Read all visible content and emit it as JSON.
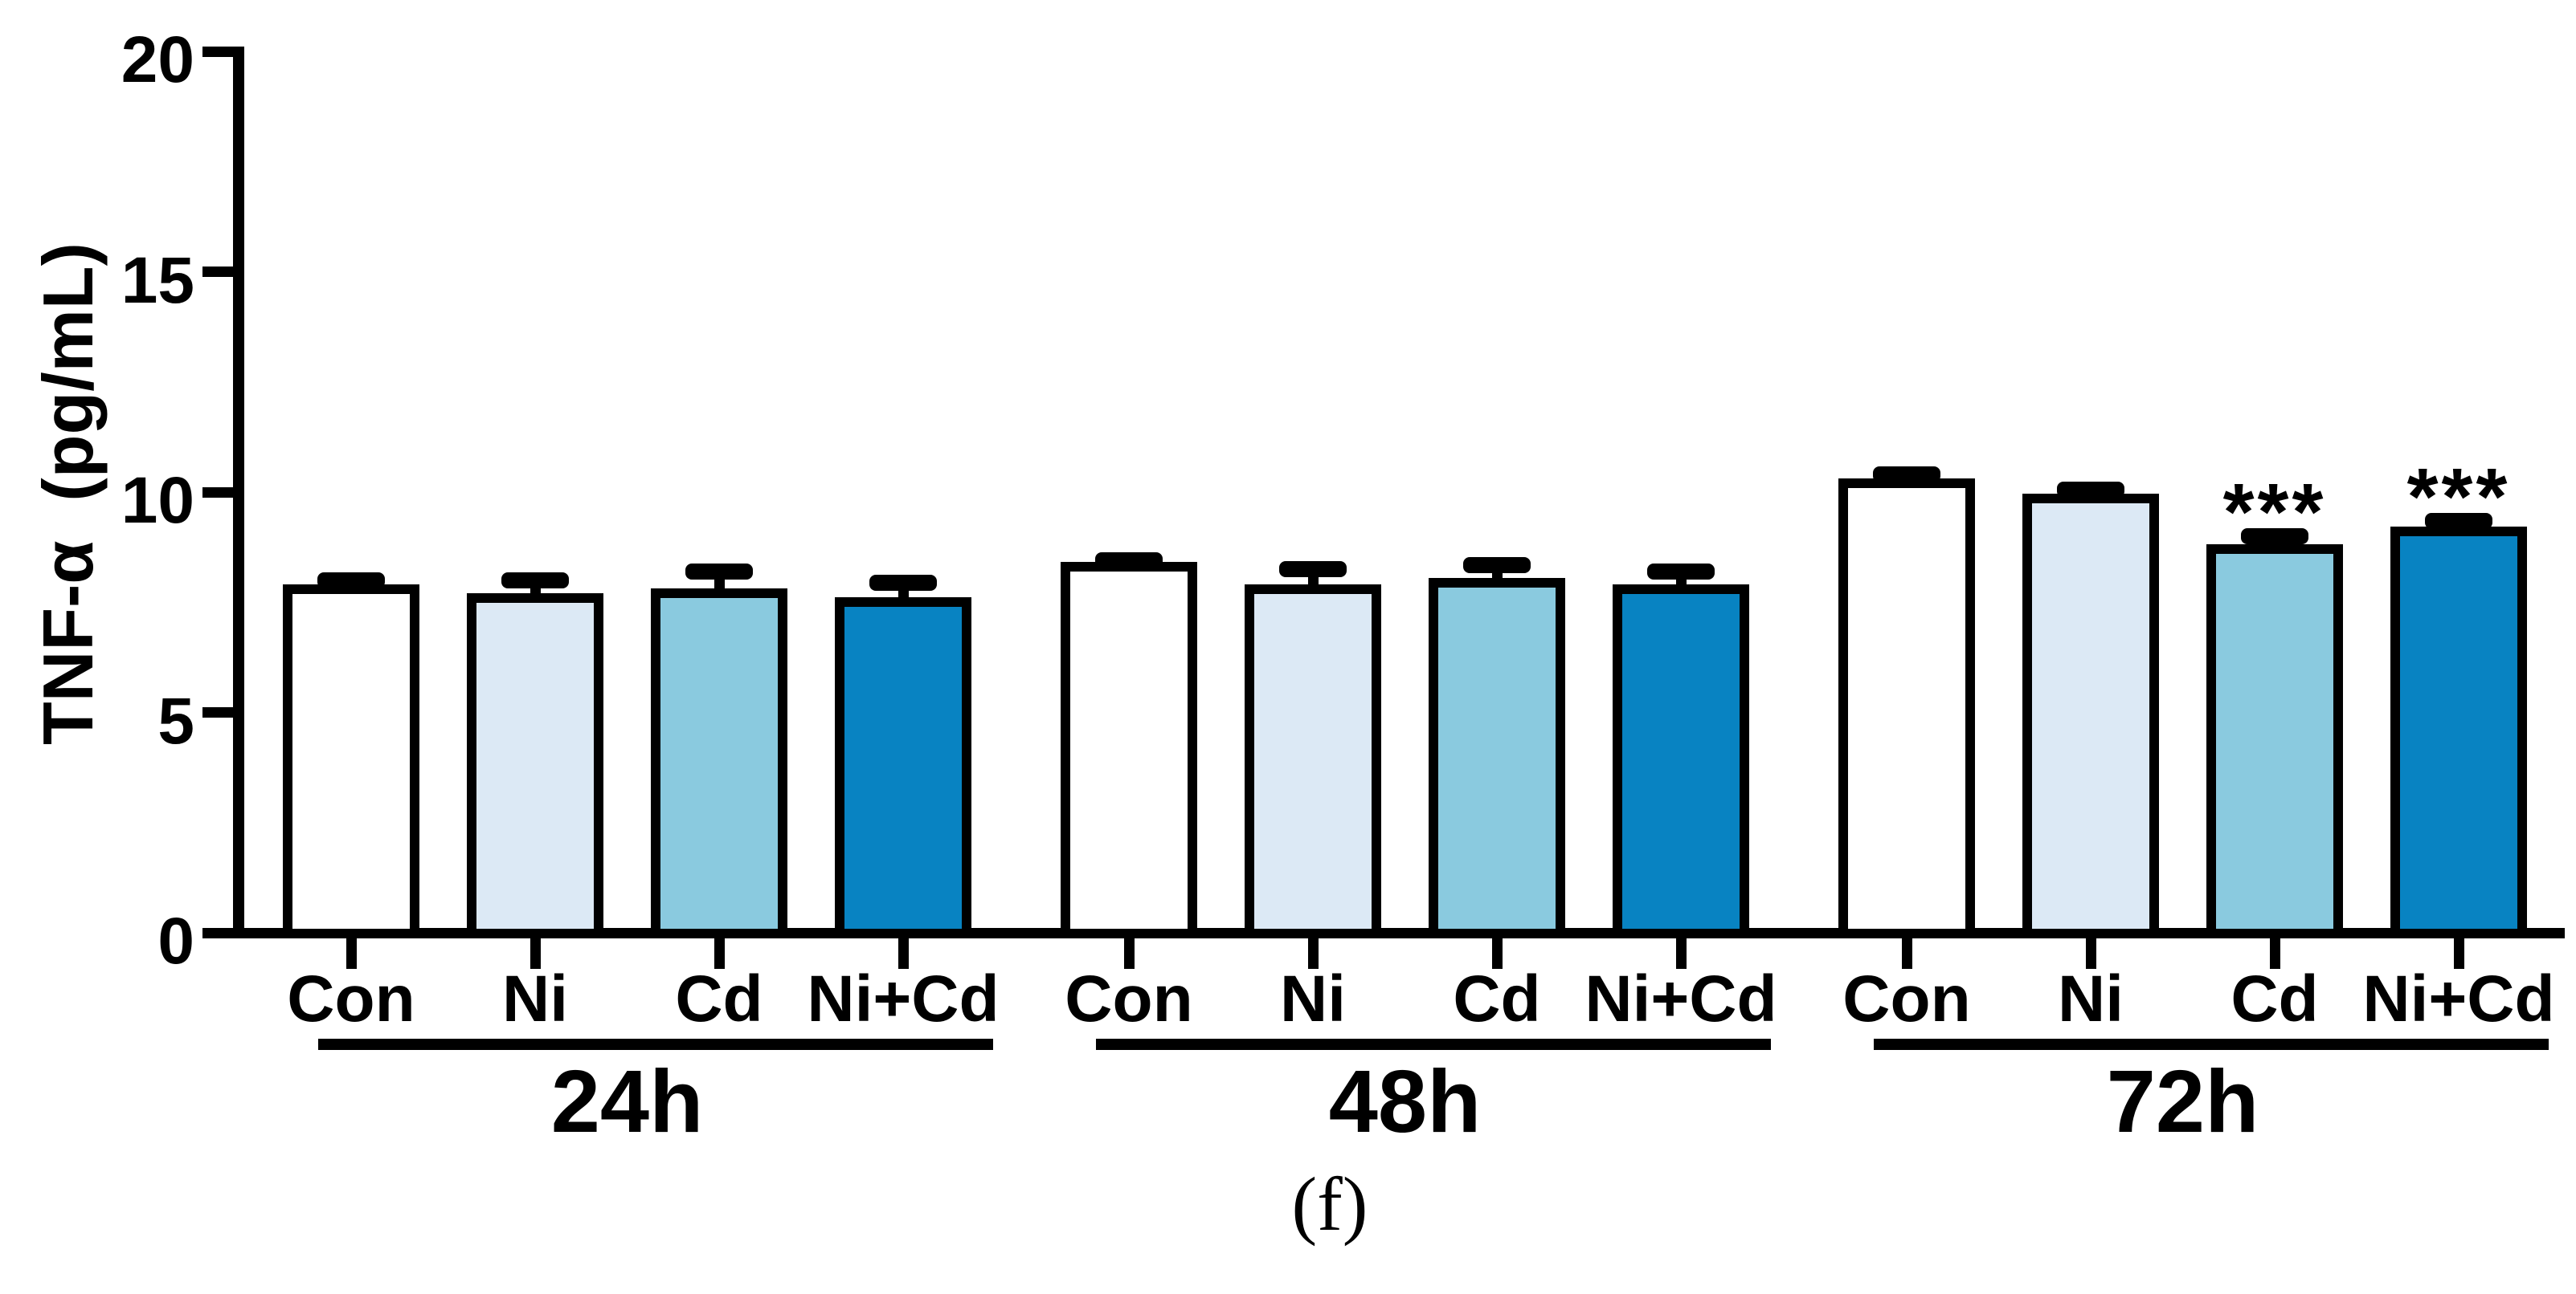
{
  "figure": {
    "panel_label": "(f)"
  },
  "axes": {
    "y_title": "TNF-α  (pg/mL)"
  },
  "chart_data": {
    "type": "bar",
    "title": "",
    "xlabel": "",
    "ylabel": "TNF-α  (pg/mL)",
    "ylim": [
      0,
      20
    ],
    "yticks": [
      0,
      5,
      10,
      15,
      20
    ],
    "grid": false,
    "legend_position": "none",
    "groups": [
      "24h",
      "48h",
      "72h"
    ],
    "categories": [
      "Con",
      "Ni",
      "Cd",
      "Ni+Cd"
    ],
    "series": [
      {
        "group": "24h",
        "values": [
          7.8,
          7.6,
          7.7,
          7.5
        ],
        "errors": [
          0.2,
          0.4,
          0.5,
          0.45
        ],
        "significance": [
          "",
          "",
          "",
          ""
        ]
      },
      {
        "group": "48h",
        "values": [
          8.3,
          7.8,
          7.95,
          7.8
        ],
        "errors": [
          0.15,
          0.45,
          0.4,
          0.4
        ],
        "significance": [
          "",
          "",
          "",
          ""
        ]
      },
      {
        "group": "72h",
        "values": [
          10.2,
          9.85,
          8.7,
          9.1
        ],
        "errors": [
          0.2,
          0.2,
          0.3,
          0.25
        ],
        "significance": [
          "",
          "",
          "***",
          "***"
        ]
      }
    ],
    "bar_fill_colors": [
      "#ffffff",
      "#dce9f5",
      "#8acadf",
      "#0883c2"
    ],
    "outline_color": "#000000",
    "error_bar_color": "#000000",
    "text_color": "#000000"
  }
}
